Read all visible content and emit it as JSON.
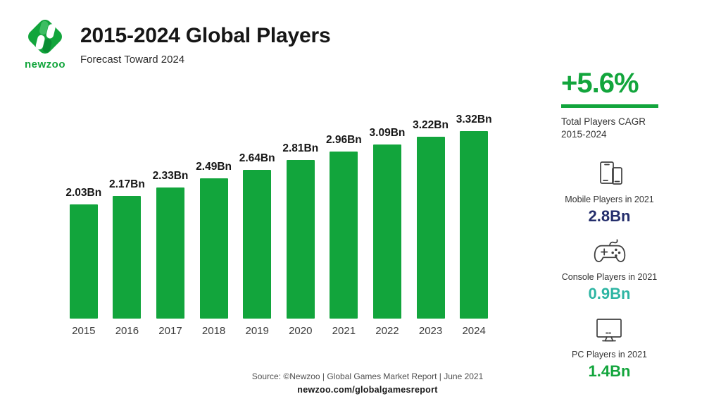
{
  "header": {
    "logo_text": "newzoo",
    "title": "2015-2024 Global Players",
    "subtitle": "Forecast Toward 2024"
  },
  "chart_data": {
    "type": "bar",
    "title": "2015-2024 Global Players",
    "categories": [
      "2015",
      "2016",
      "2017",
      "2018",
      "2019",
      "2020",
      "2021",
      "2022",
      "2023",
      "2024"
    ],
    "values": [
      2.03,
      2.17,
      2.33,
      2.49,
      2.64,
      2.81,
      2.96,
      3.09,
      3.22,
      3.32
    ],
    "value_labels": [
      "2.03Bn",
      "2.17Bn",
      "2.33Bn",
      "2.49Bn",
      "2.64Bn",
      "2.81Bn",
      "2.96Bn",
      "3.09Bn",
      "3.22Bn",
      "3.32Bn"
    ],
    "unit": "Bn",
    "ylabel": "Global Players",
    "xlabel": "",
    "ylim": [
      0,
      3.6
    ],
    "gridlines": false,
    "bar_color": "#12a53c"
  },
  "sidebar": {
    "cagr": {
      "value": "+5.6%",
      "label_line1": "Total Players CAGR",
      "label_line2": "2015-2024",
      "accent_color": "#12a53c"
    },
    "stats": [
      {
        "icon": "mobile-devices-icon",
        "label": "Mobile Players in 2021",
        "value": "2.8Bn",
        "color": "#242e6c"
      },
      {
        "icon": "gamepad-icon",
        "label": "Console Players in 2021",
        "value": "0.9Bn",
        "color": "#2db5a3"
      },
      {
        "icon": "monitor-icon",
        "label": "PC Players in 2021",
        "value": "1.4Bn",
        "color": "#12a53c"
      }
    ]
  },
  "footer": {
    "source_line": "Source: ©Newzoo | Global Games Market Report | June 2021",
    "url": "newzoo.com/globalgamesreport"
  }
}
